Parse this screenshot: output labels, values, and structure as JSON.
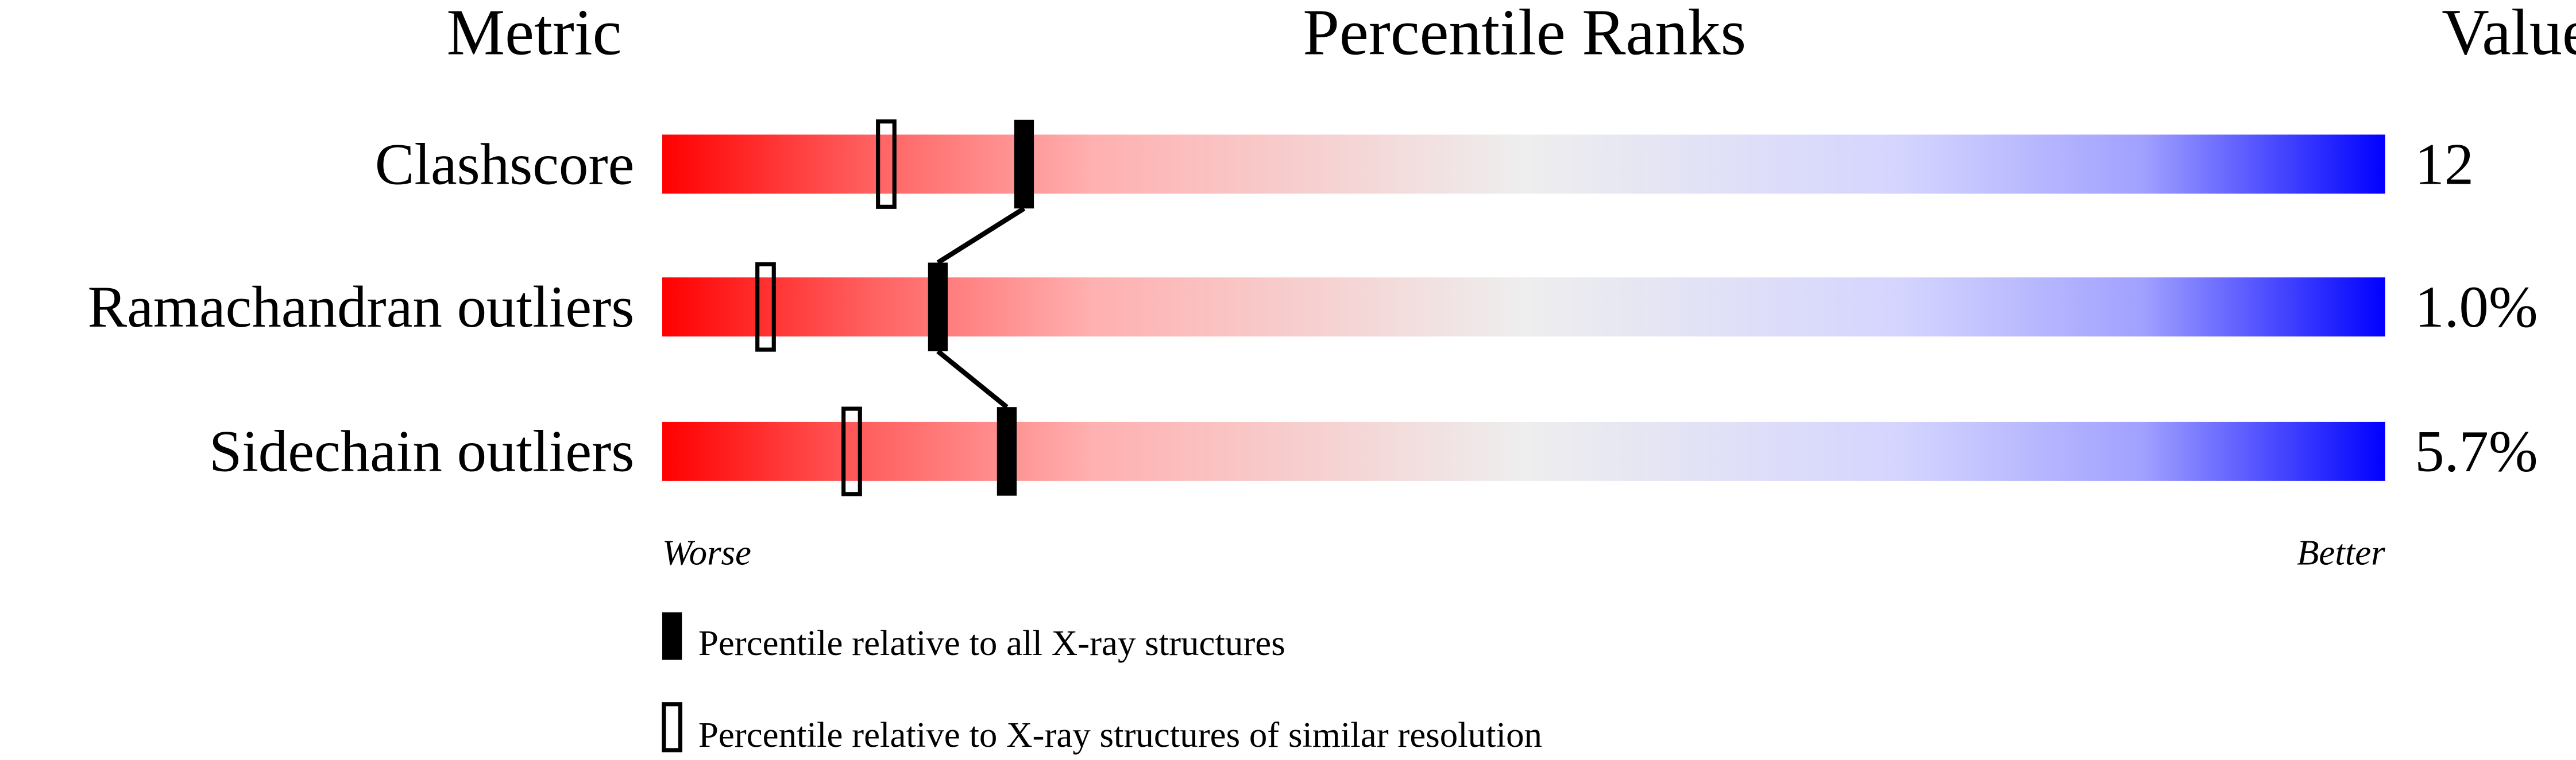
{
  "chart_data": {
    "type": "percentile-ranks",
    "headers": {
      "metric": "Metric",
      "ranks": "Percentile Ranks",
      "value": "Value"
    },
    "xlim": [
      0,
      100
    ],
    "axis_labels": {
      "left": "Worse",
      "right": "Better"
    },
    "rows": [
      {
        "metric": "Clashscore",
        "value": "12",
        "percentile_all": 21,
        "percentile_similar": 13
      },
      {
        "metric": "Ramachandran outliers",
        "value": "1.0%",
        "percentile_all": 16,
        "percentile_similar": 6
      },
      {
        "metric": "Sidechain outliers",
        "value": "5.7%",
        "percentile_all": 20,
        "percentile_similar": 11
      }
    ],
    "legend": [
      {
        "marker": "filled",
        "label": "Percentile relative to all X-ray structures"
      },
      {
        "marker": "open",
        "label": "Percentile relative to X-ray structures of similar resolution"
      }
    ],
    "colors": {
      "worse": "#ff0000",
      "middle": "#eeeeee",
      "better": "#0000ff",
      "marker": "#000000"
    }
  }
}
